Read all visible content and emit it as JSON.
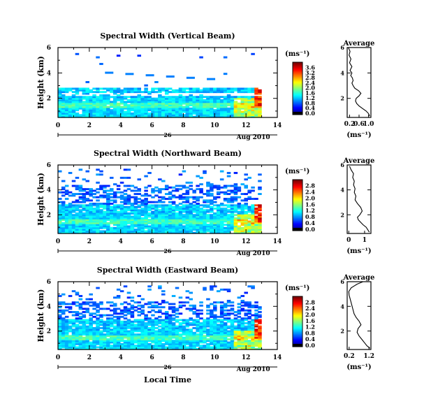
{
  "date_label": "Aug 2010",
  "day_label": "26",
  "xlabel": "Local Time",
  "chart_data": [
    {
      "type": "heatmap",
      "title": "Spectral Width (Vertical Beam)",
      "ylabel": "Height (km)",
      "xlim": [
        0,
        14
      ],
      "ylim": [
        0.5,
        6
      ],
      "x_ticks": [
        "0",
        "2",
        "4",
        "6",
        "8",
        "10",
        "12",
        "14"
      ],
      "y_ticks": [
        "2",
        "4",
        "6"
      ],
      "colorbar": {
        "unit": "(ms⁻¹)",
        "ticks": [
          "0.0",
          "0.4",
          "0.8",
          "1.2",
          "1.6",
          "2.0",
          "2.4",
          "2.8",
          "3.2",
          "3.6"
        ],
        "max": 3.8
      },
      "average": {
        "title": "Average",
        "xlabel": "(ms⁻¹)",
        "xlim": [
          0.1,
          1.1
        ],
        "x_ticks": [
          "0.2",
          "0.6",
          "1.0"
        ],
        "x_tick_values": [
          0.2,
          0.6,
          1.0
        ],
        "ylim": [
          0.5,
          6
        ],
        "y_ticks": [
          "2",
          "4",
          "6"
        ],
        "profile": [
          [
            1.05,
            0.6
          ],
          [
            1.0,
            0.8
          ],
          [
            0.9,
            1.0
          ],
          [
            0.75,
            1.2
          ],
          [
            0.6,
            1.4
          ],
          [
            0.5,
            1.6
          ],
          [
            0.45,
            1.8
          ],
          [
            0.48,
            2.0
          ],
          [
            0.6,
            2.2
          ],
          [
            0.68,
            2.4
          ],
          [
            0.58,
            2.6
          ],
          [
            0.42,
            2.8
          ],
          [
            0.35,
            3.0
          ],
          [
            0.3,
            3.2
          ],
          [
            0.35,
            3.4
          ],
          [
            0.32,
            3.6
          ],
          [
            0.25,
            3.8
          ],
          [
            0.3,
            4.0
          ],
          [
            0.22,
            4.2
          ],
          [
            0.3,
            4.5
          ],
          [
            0.2,
            4.8
          ],
          [
            0.26,
            5.1
          ],
          [
            0.18,
            5.4
          ],
          [
            0.22,
            5.7
          ],
          [
            0.15,
            6.0
          ]
        ]
      }
    },
    {
      "type": "heatmap",
      "title": "Spectral Width (Northward Beam)",
      "ylabel": "Height (km)",
      "xlim": [
        0,
        14
      ],
      "ylim": [
        0.5,
        6
      ],
      "x_ticks": [
        "0",
        "2",
        "4",
        "6",
        "8",
        "10",
        "12",
        "14"
      ],
      "y_ticks": [
        "2",
        "4",
        "6"
      ],
      "colorbar": {
        "unit": "(ms⁻¹)",
        "ticks": [
          "0.0",
          "0.4",
          "0.8",
          "1.2",
          "1.6",
          "2.0",
          "2.4",
          "2.8"
        ],
        "max": 3.0
      },
      "average": {
        "title": "Average",
        "xlabel": "(ms⁻¹)",
        "xlim": [
          -0.1,
          1.4
        ],
        "x_ticks": [
          "0",
          "1"
        ],
        "x_tick_values": [
          0,
          1
        ],
        "ylim": [
          0.5,
          6
        ],
        "y_ticks": [
          "2",
          "4",
          "6"
        ],
        "profile": [
          [
            1.3,
            0.6
          ],
          [
            1.2,
            0.8
          ],
          [
            1.1,
            1.0
          ],
          [
            0.9,
            1.2
          ],
          [
            0.75,
            1.4
          ],
          [
            0.6,
            1.6
          ],
          [
            0.55,
            1.8
          ],
          [
            0.7,
            2.0
          ],
          [
            0.85,
            2.3
          ],
          [
            0.75,
            2.6
          ],
          [
            0.55,
            2.9
          ],
          [
            0.4,
            3.2
          ],
          [
            0.45,
            3.5
          ],
          [
            0.35,
            3.8
          ],
          [
            0.4,
            4.1
          ],
          [
            0.3,
            4.4
          ],
          [
            0.35,
            4.7
          ],
          [
            0.25,
            5.0
          ],
          [
            0.3,
            5.3
          ],
          [
            0.15,
            5.6
          ],
          [
            0.05,
            5.9
          ]
        ]
      }
    },
    {
      "type": "heatmap",
      "title": "Spectral Width (Eastward Beam)",
      "ylabel": "Height (km)",
      "xlim": [
        0,
        14
      ],
      "ylim": [
        0.5,
        6
      ],
      "x_ticks": [
        "0",
        "2",
        "4",
        "6",
        "8",
        "10",
        "12",
        "14"
      ],
      "y_ticks": [
        "2",
        "4",
        "6"
      ],
      "colorbar": {
        "unit": "(ms⁻¹)",
        "ticks": [
          "0.0",
          "0.4",
          "0.8",
          "1.2",
          "1.6",
          "2.0",
          "2.4",
          "2.8"
        ],
        "max": 3.0
      },
      "average": {
        "title": "Average",
        "xlabel": "(ms⁻¹)",
        "xlim": [
          0.1,
          1.3
        ],
        "x_ticks": [
          "0.2",
          "1.2"
        ],
        "x_tick_values": [
          0.2,
          1.2
        ],
        "ylim": [
          0.5,
          6
        ],
        "y_ticks": [
          "2",
          "4",
          "6"
        ],
        "profile": [
          [
            1.25,
            0.6
          ],
          [
            1.1,
            0.8
          ],
          [
            1.0,
            1.0
          ],
          [
            0.85,
            1.3
          ],
          [
            0.7,
            1.6
          ],
          [
            0.6,
            1.9
          ],
          [
            0.65,
            2.2
          ],
          [
            0.8,
            2.5
          ],
          [
            0.7,
            2.8
          ],
          [
            0.55,
            3.1
          ],
          [
            0.45,
            3.4
          ],
          [
            0.4,
            3.7
          ],
          [
            0.35,
            4.0
          ],
          [
            0.3,
            4.3
          ],
          [
            0.25,
            4.6
          ],
          [
            0.2,
            4.9
          ],
          [
            0.18,
            5.2
          ],
          [
            0.3,
            5.5
          ],
          [
            0.6,
            5.8
          ],
          [
            0.9,
            6.0
          ]
        ]
      }
    }
  ]
}
